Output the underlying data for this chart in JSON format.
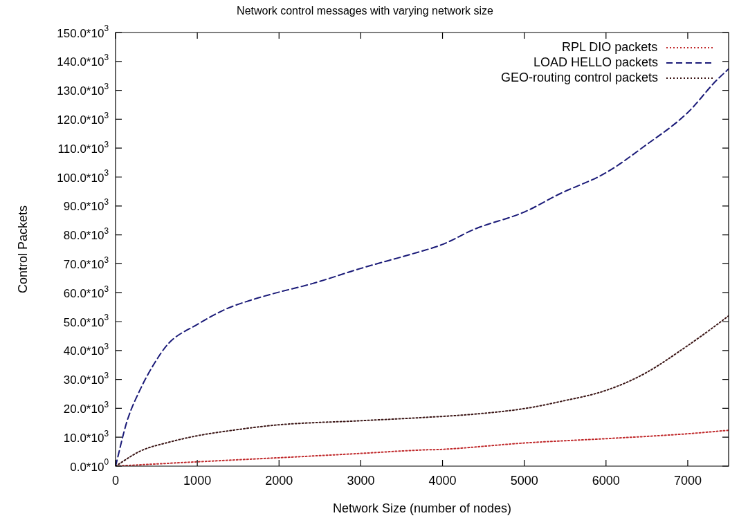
{
  "chart_data": {
    "type": "line",
    "title": "Network control messages with varying network size",
    "xlabel": "Network Size (number of nodes)",
    "ylabel": "Control Packets",
    "xlim": [
      0,
      7500
    ],
    "xticks": [
      0,
      1000,
      2000,
      3000,
      4000,
      5000,
      6000,
      7000
    ],
    "ylim": [
      0,
      150000
    ],
    "yticks": [
      {
        "value": 0,
        "label": "0.0*10$^{0}$"
      },
      {
        "value": 10000,
        "label": "10.0*10$^{3}$"
      },
      {
        "value": 20000,
        "label": "20.0*10$^{3}$"
      },
      {
        "value": 30000,
        "label": "30.0*10$^{3}$"
      },
      {
        "value": 40000,
        "label": "40.0*10$^{3}$"
      },
      {
        "value": 50000,
        "label": "50.0*10$^{3}$"
      },
      {
        "value": 60000,
        "label": "60.0*10$^{3}$"
      },
      {
        "value": 70000,
        "label": "70.0*10$^{3}$"
      },
      {
        "value": 80000,
        "label": "80.0*10$^{3}$"
      },
      {
        "value": 90000,
        "label": "90.0*10$^{3}$"
      },
      {
        "value": 100000,
        "label": "100.0*10$^{3}$"
      },
      {
        "value": 110000,
        "label": "110.0*10$^{3}$"
      },
      {
        "value": 120000,
        "label": "120.0*10$^{3}$"
      },
      {
        "value": 130000,
        "label": "130.0*10$^{3}$"
      },
      {
        "value": 140000,
        "label": "140.0*10$^{3}$"
      },
      {
        "value": 150000,
        "label": "150.0*10$^{3}$"
      }
    ],
    "grid": false,
    "legend": "top right",
    "marker": "none",
    "series": [
      {
        "name": "RPL DIO packets",
        "color": "#c0282a",
        "line_style": "dotted",
        "x": [
          0,
          1000,
          2000,
          3000,
          3750,
          4000,
          5000,
          6000,
          7000,
          7500
        ],
        "values": [
          0,
          1500,
          2900,
          4400,
          5600,
          5800,
          8000,
          9500,
          11200,
          12400
        ]
      },
      {
        "name": "LOAD HELLO packets",
        "color": "#1a1a78",
        "line_style": "dashed",
        "x": [
          0,
          140,
          310,
          485,
          657,
          1000,
          1356,
          1700,
          2000,
          2390,
          3000,
          3700,
          4000,
          4395,
          5000,
          5435,
          6000,
          6471,
          7000,
          7336,
          7500
        ],
        "values": [
          0,
          15500,
          27000,
          36000,
          42700,
          49000,
          54400,
          57800,
          60200,
          63000,
          68400,
          74000,
          76700,
          82000,
          87900,
          94200,
          101500,
          110700,
          122300,
          133000,
          137400
        ]
      },
      {
        "name": "GEO-routing control packets",
        "color": "#3a1414",
        "line_style": "dotted",
        "x": [
          0,
          310,
          657,
          1000,
          1356,
          2000,
          3000,
          3750,
          4395,
          5000,
          5435,
          6000,
          6471,
          7000,
          7336,
          7500
        ],
        "values": [
          0,
          5300,
          8300,
          10500,
          12100,
          14300,
          15700,
          16800,
          18000,
          19900,
          22300,
          26200,
          32000,
          41700,
          48500,
          52000
        ]
      }
    ]
  }
}
